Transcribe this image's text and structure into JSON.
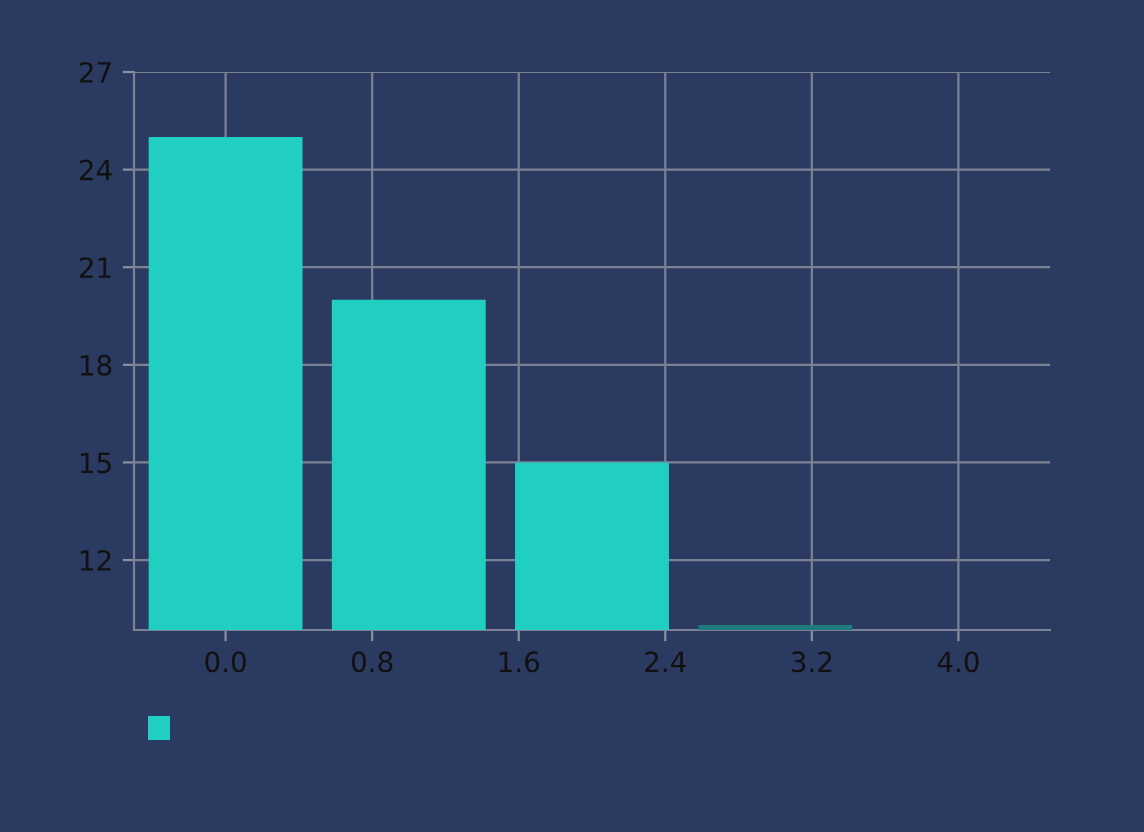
{
  "chart_data": {
    "type": "bar",
    "x": [
      0,
      1,
      2,
      3
    ],
    "values": [
      25,
      20,
      15,
      10
    ],
    "color": "#21cfc2",
    "colors": [
      "#21cfc2",
      "#21cfc2",
      "#21cfc2",
      "#1f7a7e"
    ],
    "xlim": [
      -0.5,
      4.5
    ],
    "xticks": [
      {
        "value": 0,
        "label": "0.0"
      },
      {
        "value": 0.8,
        "label": "0.8"
      },
      {
        "value": 1.6,
        "label": "1.6"
      },
      {
        "value": 2.4,
        "label": "2.4"
      },
      {
        "value": 3.2,
        "label": "3.2"
      },
      {
        "value": 4,
        "label": "4.0"
      }
    ],
    "ylim": [
      9.85,
      27
    ],
    "yticks": [
      12,
      15,
      18,
      21,
      24,
      27
    ],
    "grid": true
  }
}
